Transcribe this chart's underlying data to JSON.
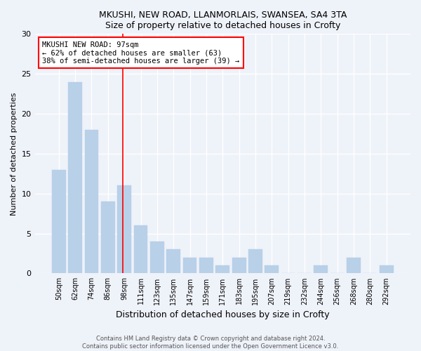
{
  "title1": "MKUSHI, NEW ROAD, LLANMORLAIS, SWANSEA, SA4 3TA",
  "title2": "Size of property relative to detached houses in Crofty",
  "xlabel": "Distribution of detached houses by size in Crofty",
  "ylabel": "Number of detached properties",
  "categories": [
    "50sqm",
    "62sqm",
    "74sqm",
    "86sqm",
    "98sqm",
    "111sqm",
    "123sqm",
    "135sqm",
    "147sqm",
    "159sqm",
    "171sqm",
    "183sqm",
    "195sqm",
    "207sqm",
    "219sqm",
    "232sqm",
    "244sqm",
    "256sqm",
    "268sqm",
    "280sqm",
    "292sqm"
  ],
  "values": [
    13,
    24,
    18,
    9,
    11,
    6,
    4,
    3,
    2,
    2,
    1,
    2,
    3,
    1,
    0,
    0,
    1,
    0,
    2,
    0,
    1
  ],
  "bar_color": "#b8d0e8",
  "reference_line_x": 3.9,
  "reference_label": "MKUSHI NEW ROAD: 97sqm",
  "annotation_line1": "← 62% of detached houses are smaller (63)",
  "annotation_line2": "38% of semi-detached houses are larger (39) →",
  "ylim": [
    0,
    30
  ],
  "yticks": [
    0,
    5,
    10,
    15,
    20,
    25,
    30
  ],
  "footer1": "Contains HM Land Registry data © Crown copyright and database right 2024.",
  "footer2": "Contains public sector information licensed under the Open Government Licence v3.0.",
  "bg_color": "#eef2f9",
  "plot_bg_color": "#eef2f9"
}
